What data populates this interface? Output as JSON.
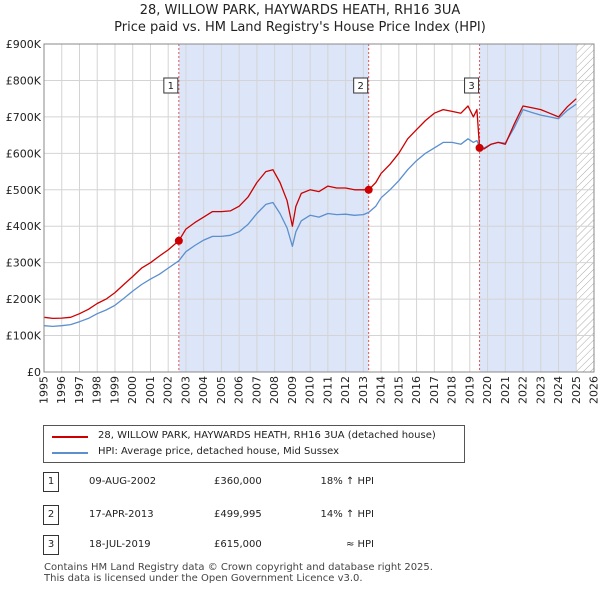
{
  "title_line1": "28, WILLOW PARK, HAYWARDS HEATH, RH16 3UA",
  "title_line2": "Price paid vs. HM Land Registry's House Price Index (HPI)",
  "colors": {
    "property_line": "#cc0000",
    "hpi_line": "#5b8fcf",
    "shade": "#dde6f8",
    "marker": "#cc0000",
    "vline": "#dd5555",
    "grid": "#d4d4d4",
    "hatch": "#aaaaaa"
  },
  "legend": {
    "property": "28, WILLOW PARK, HAYWARDS HEATH, RH16 3UA (detached house)",
    "hpi": "HPI: Average price, detached house, Mid Sussex"
  },
  "transactions": [
    {
      "num": "1",
      "date": "09-AUG-2002",
      "price": "£360,000",
      "delta": "18% ↑ HPI"
    },
    {
      "num": "2",
      "date": "17-APR-2013",
      "price": "£499,995",
      "delta": "14% ↑ HPI"
    },
    {
      "num": "3",
      "date": "18-JUL-2019",
      "price": "£615,000",
      "delta": "≈ HPI"
    }
  ],
  "footer": {
    "line1": "Contains HM Land Registry data © Crown copyright and database right 2025.",
    "line2": "This data is licensed under the Open Government Licence v3.0."
  },
  "chart_data": {
    "type": "line",
    "title": "28, WILLOW PARK, HAYWARDS HEATH, RH16 3UA",
    "subtitle": "Price paid vs. HM Land Registry's House Price Index (HPI)",
    "xlim": [
      1995,
      2026
    ],
    "ylim": [
      0,
      900000
    ],
    "x_ticks": [
      1995,
      1996,
      1997,
      1998,
      1999,
      2000,
      2001,
      2002,
      2003,
      2004,
      2005,
      2006,
      2007,
      2008,
      2009,
      2010,
      2011,
      2012,
      2013,
      2014,
      2015,
      2016,
      2017,
      2018,
      2019,
      2020,
      2021,
      2022,
      2023,
      2024,
      2025,
      2026
    ],
    "y_ticks": [
      {
        "value": 0,
        "label": "£0"
      },
      {
        "value": 100000,
        "label": "£100K"
      },
      {
        "value": 200000,
        "label": "£200K"
      },
      {
        "value": 300000,
        "label": "£300K"
      },
      {
        "value": 400000,
        "label": "£400K"
      },
      {
        "value": 500000,
        "label": "£500K"
      },
      {
        "value": 600000,
        "label": "£600K"
      },
      {
        "value": 700000,
        "label": "£700K"
      },
      {
        "value": 800000,
        "label": "£800K"
      },
      {
        "value": 900000,
        "label": "£900K"
      }
    ],
    "grid": true,
    "shaded_ranges": [
      [
        2002.6,
        2013.3
      ],
      [
        2019.55,
        2025.0
      ]
    ],
    "future_hatch_from": 2025.0,
    "markers": [
      {
        "label": "1",
        "x": 2002.6,
        "y": 360000
      },
      {
        "label": "2",
        "x": 2013.3,
        "y": 499995
      },
      {
        "label": "3",
        "x": 2019.55,
        "y": 615000
      }
    ],
    "series": [
      {
        "name": "28, WILLOW PARK, HAYWARDS HEATH, RH16 3UA (detached house)",
        "x": [
          1995.0,
          1995.5,
          1996.0,
          1996.5,
          1997.0,
          1997.5,
          1998.0,
          1998.5,
          1999.0,
          1999.5,
          2000.0,
          2000.5,
          2001.0,
          2001.5,
          2002.0,
          2002.6,
          2003.0,
          2003.5,
          2004.0,
          2004.5,
          2005.0,
          2005.5,
          2006.0,
          2006.5,
          2007.0,
          2007.5,
          2007.9,
          2008.3,
          2008.7,
          2009.0,
          2009.2,
          2009.5,
          2010.0,
          2010.5,
          2011.0,
          2011.5,
          2012.0,
          2012.5,
          2013.0,
          2013.3,
          2013.7,
          2014.0,
          2014.5,
          2015.0,
          2015.5,
          2016.0,
          2016.5,
          2017.0,
          2017.5,
          2018.0,
          2018.5,
          2018.9,
          2019.2,
          2019.4,
          2019.55,
          2019.8,
          2020.2,
          2020.6,
          2021.0,
          2021.5,
          2022.0,
          2022.5,
          2023.0,
          2023.5,
          2024.0,
          2024.5,
          2025.0
        ],
        "values": [
          150000,
          147000,
          148000,
          150000,
          160000,
          172000,
          188000,
          200000,
          218000,
          240000,
          262000,
          285000,
          300000,
          318000,
          335000,
          360000,
          392000,
          410000,
          425000,
          440000,
          440000,
          442000,
          455000,
          480000,
          520000,
          550000,
          555000,
          520000,
          470000,
          400000,
          455000,
          490000,
          500000,
          495000,
          510000,
          505000,
          505000,
          500000,
          500000,
          499995,
          520000,
          545000,
          570000,
          600000,
          640000,
          665000,
          690000,
          710000,
          720000,
          715000,
          710000,
          730000,
          700000,
          720000,
          615000,
          612000,
          625000,
          630000,
          625000,
          680000,
          730000,
          725000,
          720000,
          710000,
          700000,
          728000,
          750000
        ]
      },
      {
        "name": "HPI: Average price, detached house, Mid Sussex",
        "x": [
          1995.0,
          1995.5,
          1996.0,
          1996.5,
          1997.0,
          1997.5,
          1998.0,
          1998.5,
          1999.0,
          1999.5,
          2000.0,
          2000.5,
          2001.0,
          2001.5,
          2002.0,
          2002.6,
          2003.0,
          2003.5,
          2004.0,
          2004.5,
          2005.0,
          2005.5,
          2006.0,
          2006.5,
          2007.0,
          2007.5,
          2007.9,
          2008.3,
          2008.7,
          2009.0,
          2009.2,
          2009.5,
          2010.0,
          2010.5,
          2011.0,
          2011.5,
          2012.0,
          2012.5,
          2013.0,
          2013.3,
          2013.7,
          2014.0,
          2014.5,
          2015.0,
          2015.5,
          2016.0,
          2016.5,
          2017.0,
          2017.5,
          2018.0,
          2018.5,
          2018.9,
          2019.2,
          2019.4,
          2019.55,
          2019.8,
          2020.2,
          2020.6,
          2021.0,
          2021.5,
          2022.0,
          2022.5,
          2023.0,
          2023.5,
          2024.0,
          2024.5,
          2025.0
        ],
        "values": [
          127000,
          125000,
          127000,
          130000,
          138000,
          147000,
          160000,
          170000,
          183000,
          202000,
          222000,
          240000,
          255000,
          268000,
          285000,
          305000,
          330000,
          347000,
          362000,
          372000,
          372000,
          375000,
          385000,
          405000,
          435000,
          460000,
          465000,
          435000,
          395000,
          345000,
          385000,
          415000,
          430000,
          425000,
          435000,
          432000,
          433000,
          430000,
          432000,
          438000,
          455000,
          478000,
          500000,
          525000,
          555000,
          580000,
          600000,
          615000,
          630000,
          630000,
          625000,
          640000,
          630000,
          635000,
          618000,
          615000,
          625000,
          630000,
          628000,
          670000,
          720000,
          712000,
          705000,
          700000,
          695000,
          718000,
          735000
        ]
      }
    ]
  }
}
